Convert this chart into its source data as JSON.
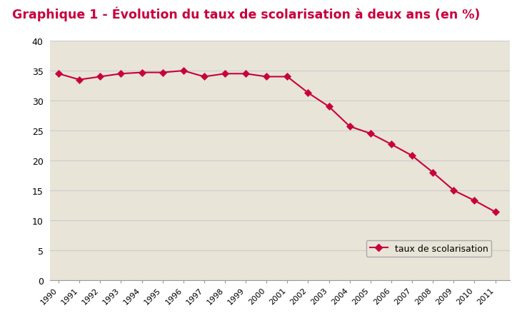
{
  "title": "Graphique 1 - Évolution du taux de scolarisation à deux ans (en %)",
  "title_color": "#c8003c",
  "title_fontsize": 12.5,
  "years": [
    1990,
    1991,
    1992,
    1993,
    1994,
    1995,
    1996,
    1997,
    1998,
    1999,
    2000,
    2001,
    2002,
    2003,
    2004,
    2005,
    2006,
    2007,
    2008,
    2009,
    2010,
    2011
  ],
  "values": [
    34.5,
    33.5,
    34.0,
    34.5,
    34.7,
    34.7,
    35.0,
    34.0,
    34.5,
    34.5,
    34.0,
    34.0,
    31.3,
    29.0,
    25.7,
    24.5,
    22.7,
    20.8,
    18.0,
    15.0,
    13.3,
    11.4
  ],
  "line_color": "#c8003c",
  "marker": "D",
  "marker_size": 5,
  "legend_label": "taux de scolarisation",
  "ylim": [
    0,
    40
  ],
  "yticks": [
    0,
    5,
    10,
    15,
    20,
    25,
    30,
    35,
    40
  ],
  "grid_color": "#cccccc",
  "white_bg": "#ffffff",
  "beige_bg": "#d4cfc0",
  "chart_bg": "#e8e4d8",
  "title_bar_color": "#c8003c",
  "xlim_left": 1989.6,
  "xlim_right": 2011.7
}
